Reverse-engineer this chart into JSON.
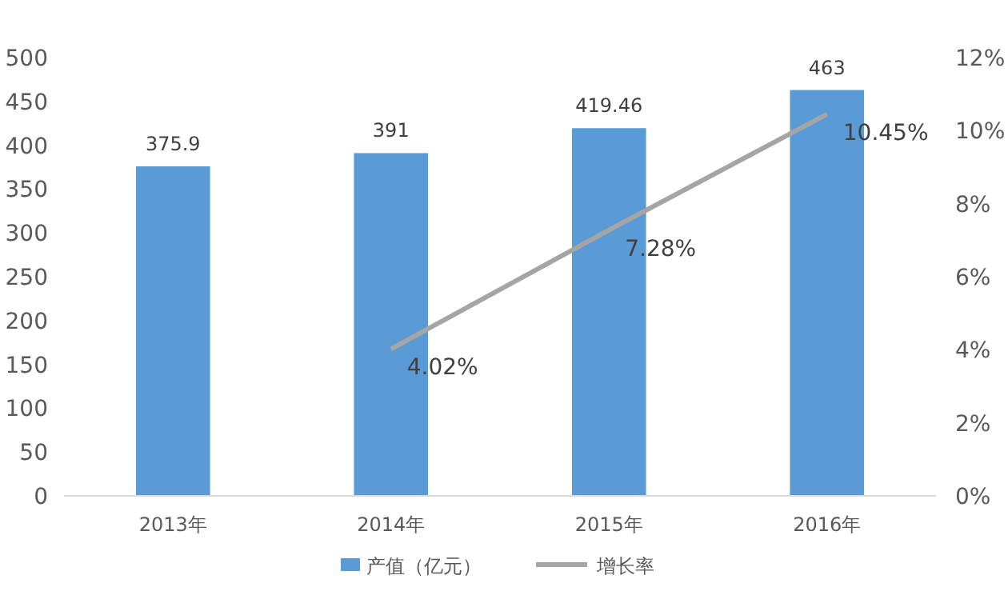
{
  "chart_data": {
    "type": "bar",
    "categories": [
      "2013年",
      "2014年",
      "2015年",
      "2016年"
    ],
    "series": [
      {
        "name": "产值（亿元）",
        "color": "#5b9bd5",
        "values": [
          375.9,
          391,
          419.46,
          463
        ],
        "value_labels": [
          "375.9",
          "391",
          "419.46",
          "463"
        ]
      },
      {
        "name": "增长率",
        "type": "line",
        "axis": "y2",
        "color": "#a5a5a5",
        "values": [
          null,
          4.02,
          7.28,
          10.45
        ],
        "value_labels": [
          null,
          "4.02%",
          "7.28%",
          "10.45%"
        ]
      }
    ],
    "ylim": [
      0,
      500
    ],
    "yticks": [
      0,
      50,
      100,
      150,
      200,
      250,
      300,
      350,
      400,
      450,
      500
    ],
    "y2lim": [
      0,
      12
    ],
    "y2ticks": [
      {
        "value": 0,
        "label": "0%"
      },
      {
        "value": 2,
        "label": "2%"
      },
      {
        "value": 4,
        "label": "4%"
      },
      {
        "value": 6,
        "label": "6%"
      },
      {
        "value": 8,
        "label": "8%"
      },
      {
        "value": 10,
        "label": "10%"
      },
      {
        "value": 12,
        "label": "12%"
      }
    ],
    "grid": false,
    "legend": "bottom",
    "marker": "none",
    "line_style": "solid"
  }
}
